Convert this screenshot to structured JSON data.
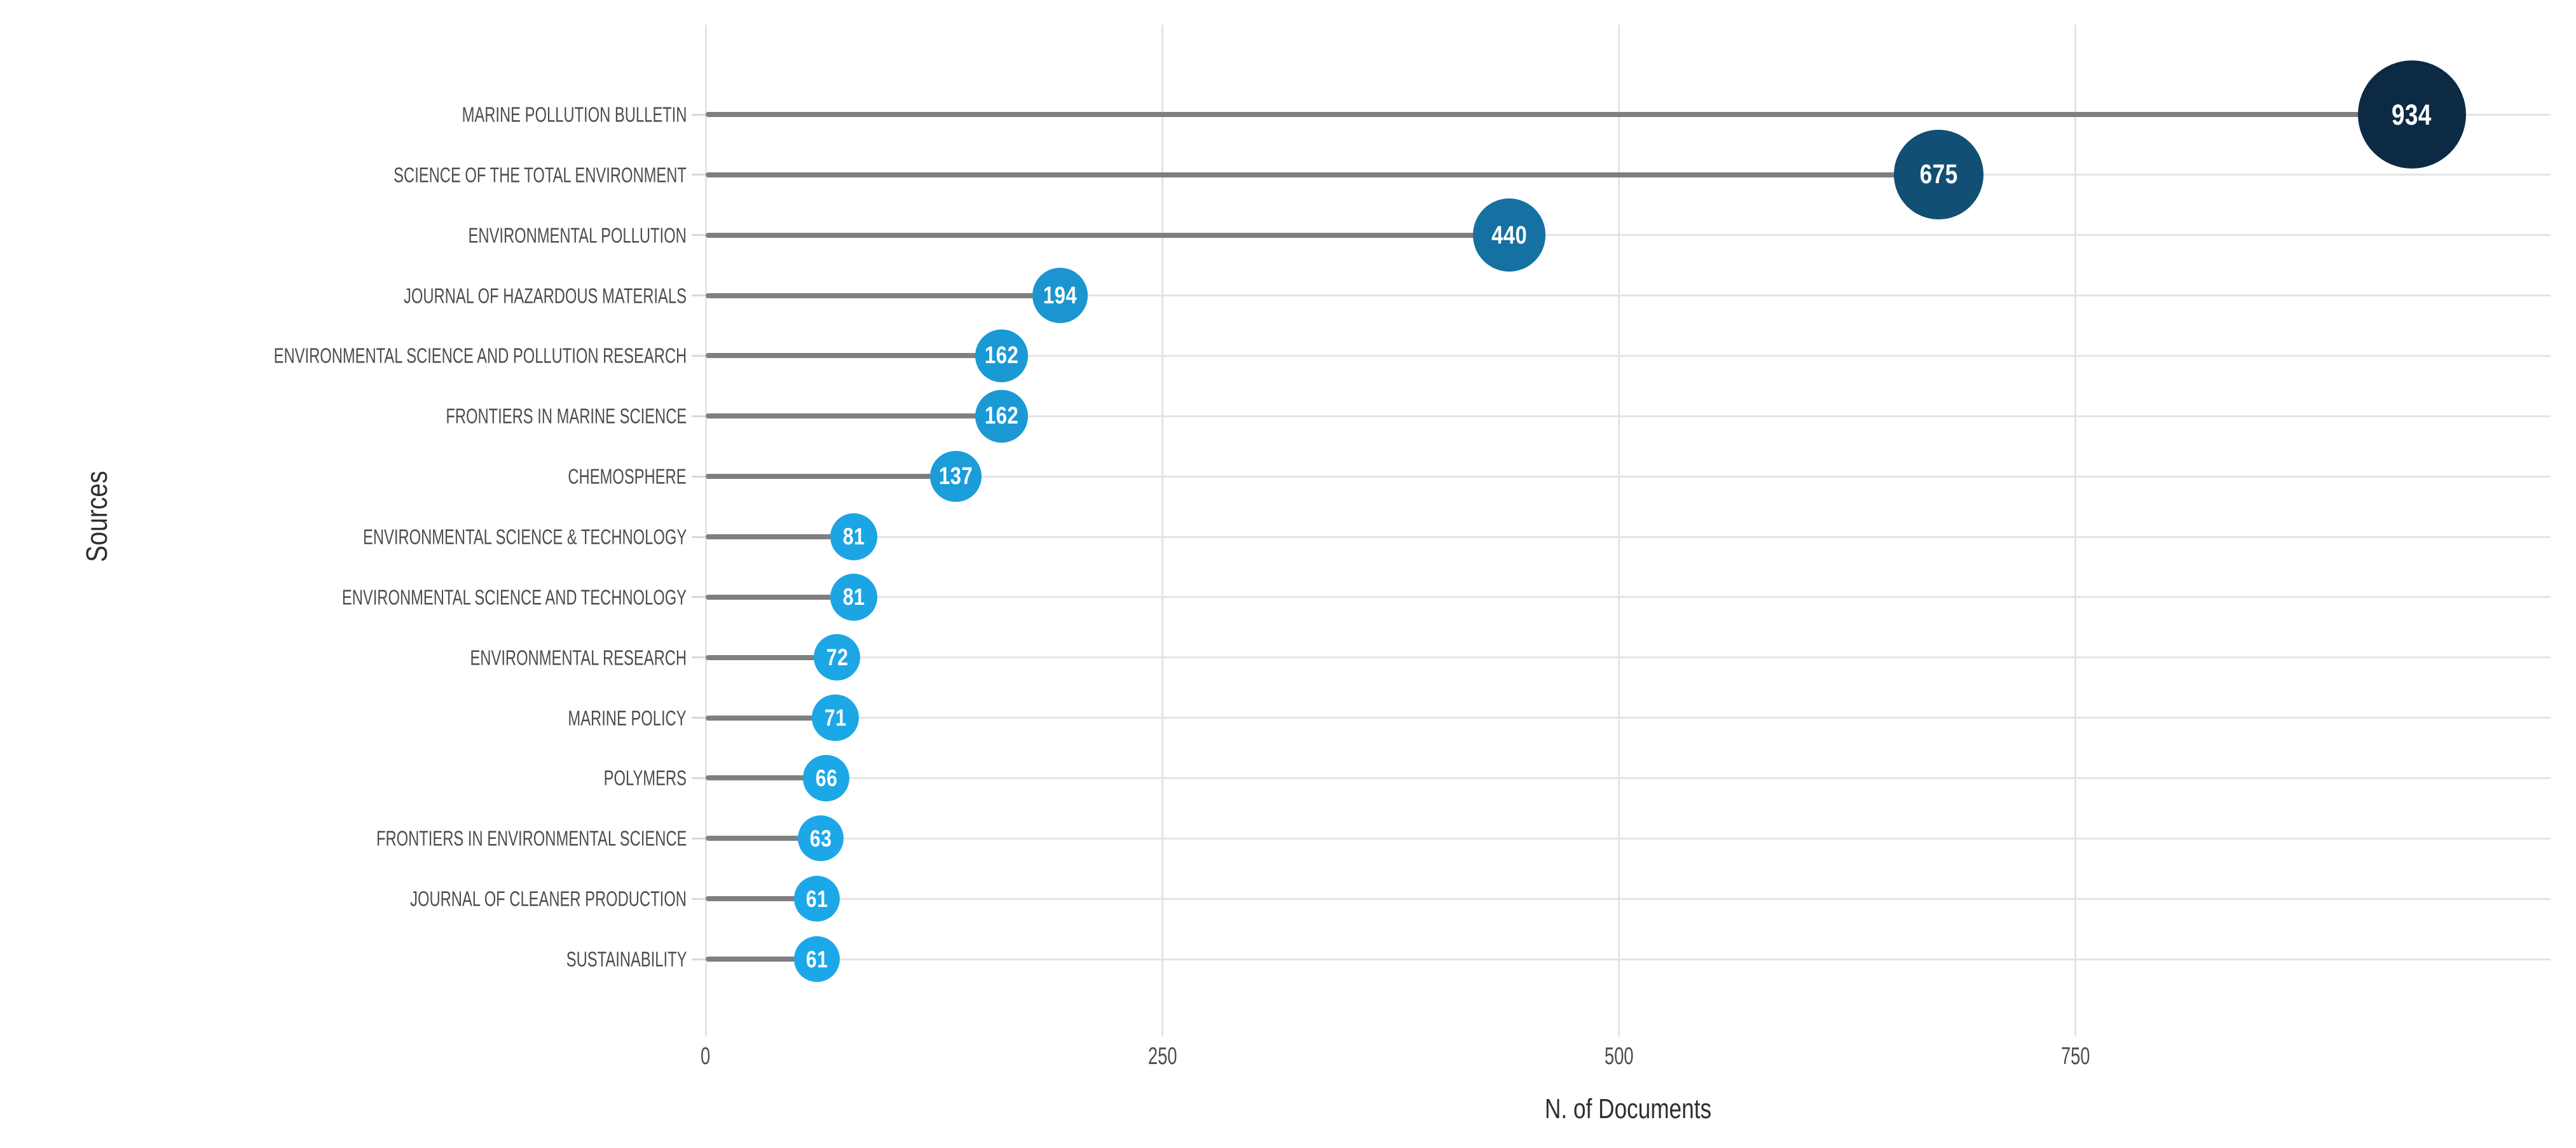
{
  "chart_data": {
    "type": "scatter",
    "variant": "lollipop-horizontal",
    "title": "",
    "xlabel": "N. of Documents",
    "ylabel": "Sources",
    "categories": [
      "MARINE POLLUTION BULLETIN",
      "SCIENCE OF THE TOTAL ENVIRONMENT",
      "ENVIRONMENTAL POLLUTION",
      "JOURNAL OF HAZARDOUS MATERIALS",
      "ENVIRONMENTAL SCIENCE AND POLLUTION RESEARCH",
      "FRONTIERS IN MARINE SCIENCE",
      "CHEMOSPHERE",
      "ENVIRONMENTAL SCIENCE & TECHNOLOGY",
      "ENVIRONMENTAL SCIENCE AND TECHNOLOGY",
      "ENVIRONMENTAL RESEARCH",
      "MARINE POLICY",
      "POLYMERS",
      "FRONTIERS IN ENVIRONMENTAL SCIENCE",
      "JOURNAL OF CLEANER PRODUCTION",
      "SUSTAINABILITY"
    ],
    "values": [
      934,
      675,
      440,
      194,
      162,
      162,
      137,
      81,
      81,
      72,
      71,
      66,
      63,
      61,
      61
    ],
    "x_ticks": [
      0,
      250,
      500,
      750
    ],
    "xlim": [
      0,
      1010
    ],
    "grid": true,
    "legend": false,
    "colors": {
      "bubble_min": "#1CA8E8",
      "bubble_max": "#0D2A44",
      "stem": "#7F7F7F",
      "gridline": "#E4E4E4",
      "tick_dash": "#D9D9D9",
      "category_text": "#4D4D4D",
      "tick_text": "#4D4D4D",
      "axis_title_text": "#2E2E2E",
      "bubble_text": "#FFFFFF"
    }
  }
}
